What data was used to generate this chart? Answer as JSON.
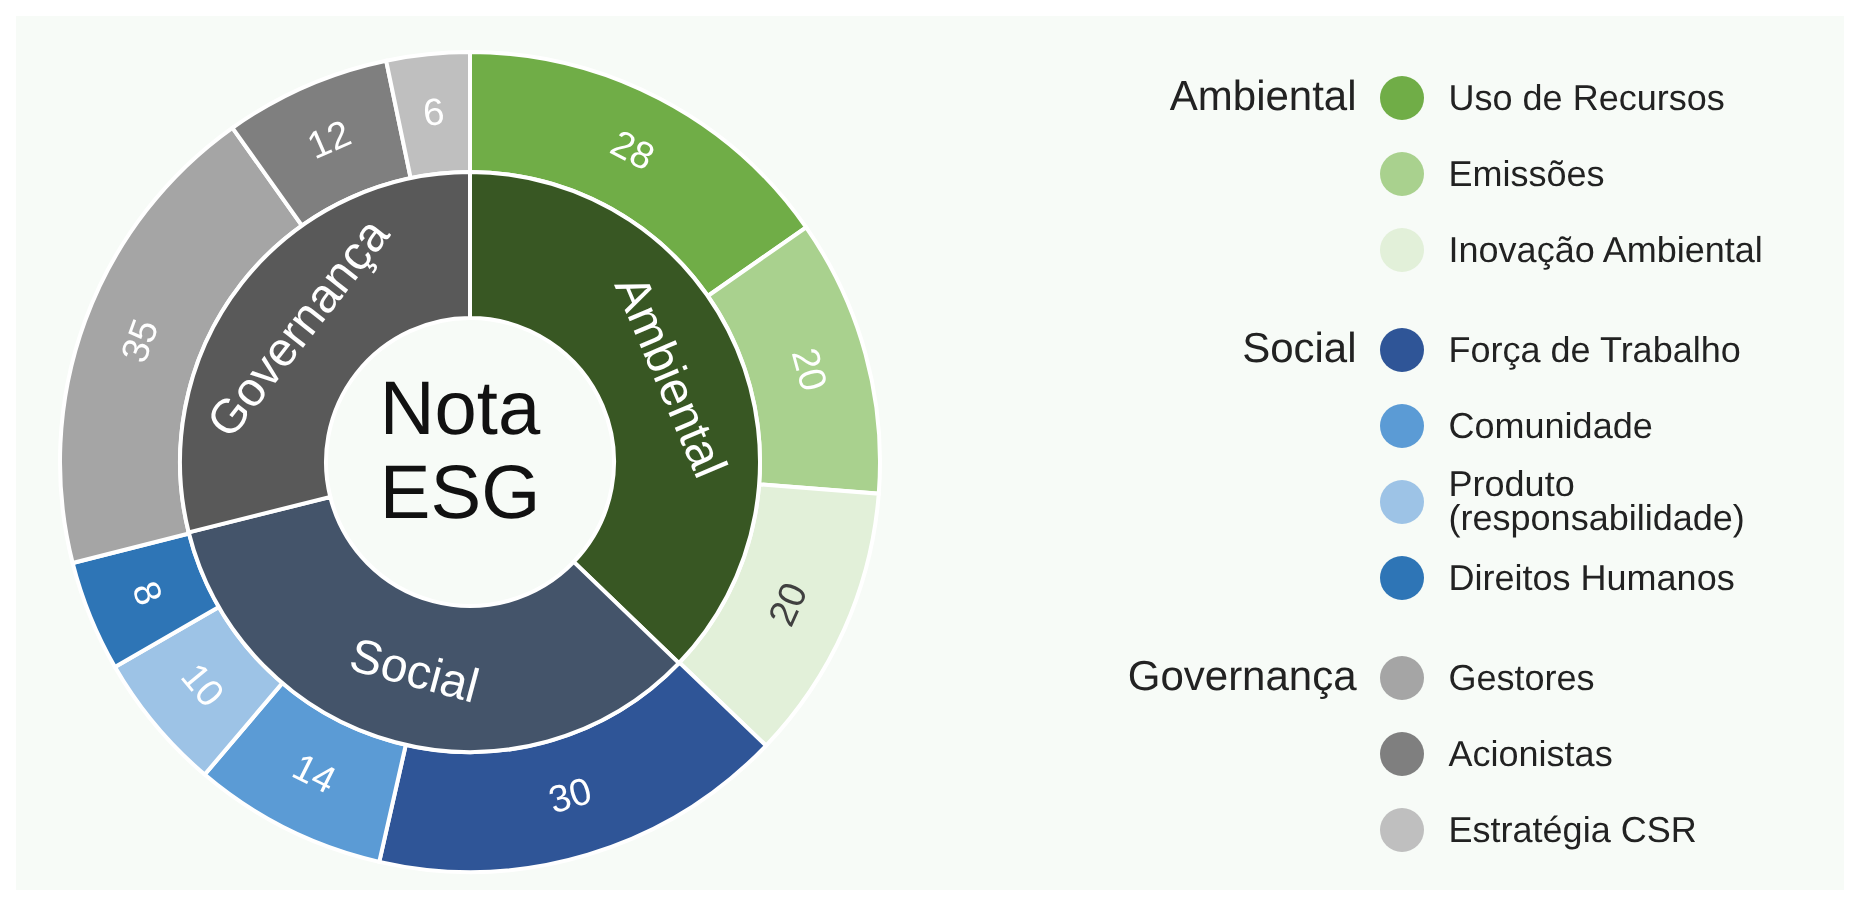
{
  "chart_data": [
    {
      "type": "donut",
      "title": "Nota ESG",
      "categories": [
        "Uso de Recursos",
        "Emissões",
        "Inovação Ambiental",
        "Força de Trabalho",
        "Comunidade",
        "Produto (responsabilidade)",
        "Direitos Humanos",
        "Gestores",
        "Acionistas",
        "Estratégia CSR"
      ],
      "values": [
        28,
        20,
        20,
        30,
        14,
        10,
        8,
        35,
        12,
        6
      ],
      "colors": [
        "#70ad47",
        "#a9d18e",
        "#e2f0d9",
        "#2f5597",
        "#5b9bd5",
        "#9dc3e6",
        "#2e75b6",
        "#a5a5a5",
        "#7f7f7f",
        "#bfbfbf"
      ],
      "data_labels": true,
      "legend": "right"
    },
    {
      "type": "donut",
      "categories": [
        "Ambiental",
        "Social",
        "Governança"
      ],
      "values": [
        37.2,
        33.9,
        28.9
      ],
      "colors": [
        "#385723",
        "#44546a",
        "#595959"
      ]
    }
  ]
}
